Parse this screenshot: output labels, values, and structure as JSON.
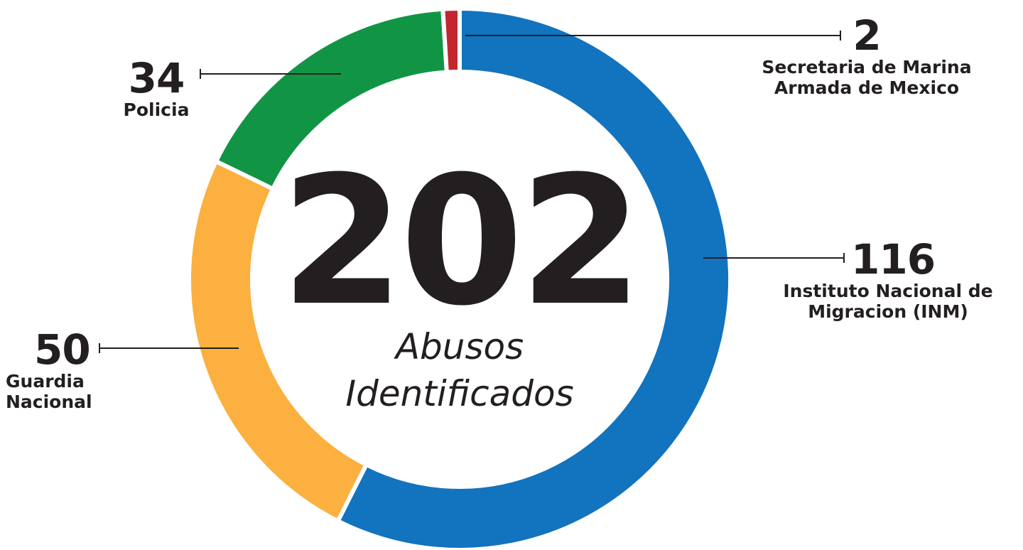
{
  "chart_data": {
    "type": "donut",
    "total": 202,
    "center_label": "Abusos Identificados",
    "categories": [
      "Instituto Nacional de Migracion (INM)",
      "Guardia Nacional",
      "Policia",
      "Secretaria de Marina Armada de Mexico"
    ],
    "values": [
      116,
      50,
      34,
      2
    ],
    "colors": [
      "#1273be",
      "#fbb040",
      "#119545",
      "#c1272d"
    ]
  }
}
